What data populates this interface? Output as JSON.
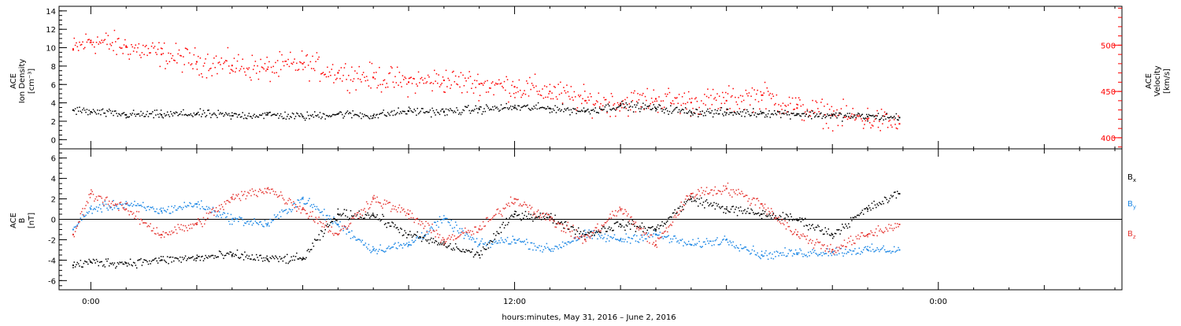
{
  "chart_data": [
    {
      "type": "scatter",
      "panel": "top",
      "ylabel_left": [
        "ACE",
        "Ion Density",
        "[cm⁻³]"
      ],
      "ylabel_right": [
        "ACE",
        "Velocity",
        "[km/s]"
      ],
      "ylim_left": [
        -1,
        14.5
      ],
      "ylim_right": [
        388,
        542
      ],
      "yticks_left": [
        0,
        2,
        4,
        6,
        8,
        10,
        12,
        14
      ],
      "yticks_right": [
        400,
        450,
        500
      ],
      "colors": {
        "density": "#000000",
        "velocity": "#ff0000"
      },
      "series": [
        {
          "axis": "left",
          "color": "#000000",
          "x": [
            -0.5,
            0.0,
            1,
            2,
            3,
            4,
            5,
            6,
            7,
            8,
            9,
            10,
            11,
            12,
            13,
            14,
            15,
            16,
            17,
            18,
            19,
            20,
            21,
            22,
            22.9
          ],
          "values": [
            3.2,
            3.0,
            2.7,
            2.7,
            2.8,
            2.6,
            2.7,
            2.5,
            2.8,
            2.6,
            3.1,
            3.0,
            3.3,
            3.5,
            3.4,
            3.1,
            3.7,
            3.4,
            3.0,
            2.9,
            2.9,
            2.8,
            2.6,
            2.5,
            2.4
          ]
        },
        {
          "axis": "right",
          "color": "#ff0000",
          "x": [
            -0.5,
            0.0,
            1,
            2,
            3,
            4,
            5,
            6,
            7,
            8,
            9,
            10,
            11,
            12,
            13,
            14,
            15,
            16,
            17,
            18,
            19,
            20,
            21,
            22,
            22.9
          ],
          "values": [
            495,
            505,
            498,
            490,
            482,
            478,
            474,
            480,
            470,
            465,
            460,
            462,
            458,
            455,
            450,
            440,
            437,
            442,
            438,
            440,
            446,
            432,
            425,
            420,
            415
          ]
        }
      ]
    },
    {
      "type": "scatter",
      "panel": "bottom",
      "ylabel": [
        "ACE",
        "B",
        "[nT]"
      ],
      "ylim": [
        -6.9,
        6.9
      ],
      "yticks": [
        -6,
        -4,
        -2,
        0,
        2,
        4,
        6
      ],
      "legend": [
        "Bx",
        "By",
        "Bz"
      ],
      "legend_placement": "right",
      "colors": {
        "Bx": "#000000",
        "By": "#1e88e5",
        "Bz": "#e53935"
      },
      "series": [
        {
          "name": "Bx",
          "color": "#000000",
          "x": [
            -0.5,
            0.0,
            1,
            2,
            3,
            4,
            5,
            6,
            7,
            8,
            9,
            10,
            11,
            12,
            13,
            14,
            15,
            16,
            17,
            18,
            19,
            20,
            21,
            22,
            22.9
          ],
          "values": [
            -4.5,
            -4.2,
            -4.3,
            -4.0,
            -3.8,
            -3.5,
            -3.9,
            -3.9,
            0.5,
            0.4,
            -1.5,
            -2.5,
            -3.5,
            0.5,
            0.2,
            -1.5,
            -0.5,
            -1.0,
            2.0,
            1.0,
            0.5,
            0.0,
            -1.5,
            1.0,
            2.5
          ]
        },
        {
          "name": "By",
          "color": "#1e88e5",
          "x": [
            -0.5,
            0.0,
            1,
            2,
            3,
            4,
            5,
            6,
            7,
            8,
            9,
            10,
            11,
            12,
            13,
            14,
            15,
            16,
            17,
            18,
            19,
            20,
            21,
            22,
            22.9
          ],
          "values": [
            -1.0,
            1.0,
            1.5,
            0.8,
            1.5,
            0.0,
            -0.5,
            2.0,
            -0.5,
            -3.0,
            -2.5,
            0.0,
            -2.5,
            -2.0,
            -3.0,
            -1.5,
            -2.0,
            -1.5,
            -2.5,
            -2.0,
            -3.5,
            -3.3,
            -3.2,
            -3.0,
            -3.0
          ]
        },
        {
          "name": "Bz",
          "color": "#e53935",
          "x": [
            -0.5,
            0.0,
            1,
            2,
            3,
            4,
            5,
            6,
            7,
            8,
            9,
            10,
            11,
            12,
            13,
            14,
            15,
            16,
            17,
            18,
            19,
            20,
            21,
            22,
            22.9
          ],
          "values": [
            -1.5,
            2.5,
            1.0,
            -1.5,
            -0.5,
            2.0,
            3.0,
            1.0,
            -1.5,
            2.0,
            0.5,
            -2.0,
            -1.0,
            2.0,
            0.0,
            -2.0,
            1.0,
            -2.5,
            2.5,
            3.0,
            1.5,
            -1.5,
            -3.0,
            -1.5,
            -0.5
          ]
        }
      ]
    }
  ],
  "x_axis": {
    "xlim": [
      -0.9,
      29.2
    ],
    "ticklabels": [
      "0:00",
      "12:00",
      "0:00"
    ],
    "tick_hours": [
      0,
      12,
      24
    ],
    "xlabel": "hours:minutes, May 31, 2016 – June  2, 2016"
  },
  "legend_labels": {
    "bx": {
      "main": "B",
      "sub": "x"
    },
    "by": {
      "main": "B",
      "sub": "y"
    },
    "bz": {
      "main": "B",
      "sub": "z"
    }
  }
}
